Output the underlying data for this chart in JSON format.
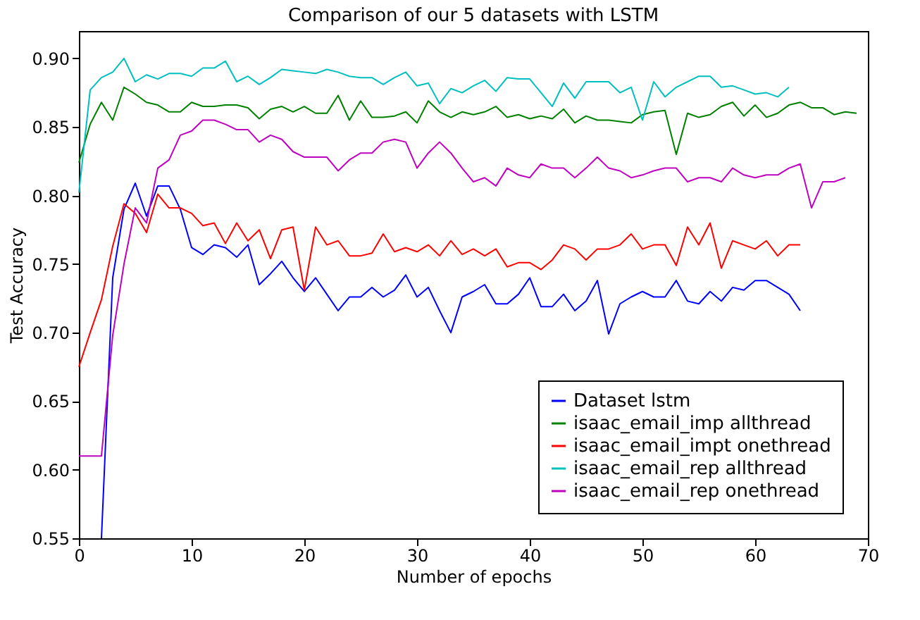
{
  "chart_data": {
    "type": "line",
    "title": "Comparison of our 5 datasets with LSTM",
    "xlabel": "Number of epochs",
    "ylabel": "Test Accuracy",
    "x": [
      0,
      1,
      2,
      3,
      4,
      5,
      6,
      7,
      8,
      9,
      10,
      11,
      12,
      13,
      14,
      15,
      16,
      17,
      18,
      19,
      20,
      21,
      22,
      23,
      24,
      25,
      26,
      27,
      28,
      29,
      30,
      31,
      32,
      33,
      34,
      35,
      36,
      37,
      38,
      39,
      40,
      41,
      42,
      43,
      44,
      45,
      46,
      47,
      48,
      49,
      50,
      51,
      52,
      53,
      54,
      55,
      56,
      57,
      58,
      59,
      60,
      61,
      62,
      63,
      64,
      65,
      66,
      67,
      68,
      69
    ],
    "series": [
      {
        "name": "Dataset lstm",
        "color": "#0000ff",
        "values": [
          null,
          null,
          0.55,
          0.74,
          0.79,
          0.809,
          0.785,
          0.807,
          0.807,
          0.79,
          0.762,
          0.757,
          0.764,
          0.762,
          0.755,
          0.764,
          0.735,
          0.743,
          0.752,
          0.74,
          0.73,
          0.74,
          0.728,
          0.716,
          0.726,
          0.726,
          0.733,
          0.726,
          0.731,
          0.742,
          0.726,
          0.733,
          0.716,
          0.7,
          0.726,
          0.73,
          0.735,
          0.721,
          0.721,
          0.728,
          0.74,
          0.719,
          0.719,
          0.728,
          0.716,
          0.723,
          0.738,
          0.699,
          0.721,
          0.726,
          0.73,
          0.726,
          0.726,
          0.738,
          0.723,
          0.721,
          0.73,
          0.723,
          0.733,
          0.731,
          0.738,
          0.738,
          0.733,
          0.728,
          0.716,
          null,
          null,
          null,
          null,
          null
        ]
      },
      {
        "name": "isaac_email_imp allthread",
        "color": "#008000",
        "values": [
          0.824,
          0.852,
          0.868,
          0.855,
          0.879,
          0.874,
          0.868,
          0.866,
          0.861,
          0.861,
          0.868,
          0.865,
          0.865,
          0.866,
          0.866,
          0.864,
          0.856,
          0.863,
          0.865,
          0.861,
          0.865,
          0.86,
          0.86,
          0.873,
          0.855,
          0.869,
          0.857,
          0.857,
          0.858,
          0.861,
          0.853,
          0.869,
          0.861,
          0.857,
          0.861,
          0.859,
          0.861,
          0.865,
          0.857,
          0.859,
          0.856,
          0.858,
          0.856,
          0.863,
          0.853,
          0.858,
          0.855,
          0.855,
          0.854,
          0.853,
          0.859,
          0.861,
          0.862,
          0.83,
          0.86,
          0.857,
          0.859,
          0.865,
          0.868,
          0.858,
          0.866,
          0.857,
          0.86,
          0.866,
          0.868,
          0.864,
          0.864,
          0.859,
          0.861,
          0.86
        ]
      },
      {
        "name": "isaac_email_impt onethread",
        "color": "#ff0000",
        "values": [
          0.675,
          0.7,
          0.724,
          0.763,
          0.794,
          0.787,
          0.773,
          0.801,
          0.791,
          0.791,
          0.787,
          0.778,
          0.78,
          0.765,
          0.78,
          0.767,
          0.775,
          0.754,
          0.775,
          0.777,
          0.731,
          0.777,
          0.764,
          0.767,
          0.756,
          0.756,
          0.758,
          0.772,
          0.759,
          0.762,
          0.759,
          0.764,
          0.756,
          0.767,
          0.757,
          0.761,
          0.756,
          0.761,
          0.748,
          0.751,
          0.751,
          0.746,
          0.753,
          0.764,
          0.761,
          0.753,
          0.761,
          0.761,
          0.764,
          0.772,
          0.761,
          0.764,
          0.764,
          0.749,
          0.777,
          0.764,
          0.78,
          0.747,
          0.767,
          0.764,
          0.761,
          0.767,
          0.756,
          0.764,
          0.764,
          null,
          null,
          null,
          null,
          null
        ]
      },
      {
        "name": "isaac_email_rep allthread",
        "color": "#00bfbf",
        "values": [
          0.802,
          0.877,
          0.886,
          0.89,
          0.9,
          0.883,
          0.888,
          0.885,
          0.889,
          0.889,
          0.887,
          0.893,
          0.893,
          0.898,
          0.883,
          0.887,
          0.881,
          0.886,
          0.892,
          0.891,
          0.89,
          0.889,
          0.892,
          0.89,
          0.887,
          0.886,
          0.886,
          0.881,
          0.886,
          0.89,
          0.88,
          0.882,
          0.867,
          0.878,
          0.875,
          0.88,
          0.884,
          0.876,
          0.886,
          0.885,
          0.885,
          0.875,
          0.865,
          0.882,
          0.871,
          0.883,
          0.883,
          0.883,
          0.875,
          0.879,
          0.855,
          0.883,
          0.872,
          0.879,
          0.883,
          0.887,
          0.887,
          0.879,
          0.88,
          0.877,
          0.874,
          0.875,
          0.872,
          0.879,
          null,
          null,
          null,
          null,
          null,
          null
        ]
      },
      {
        "name": "isaac_email_rep onethread",
        "color": "#bf00bf",
        "values": [
          0.61,
          0.61,
          0.61,
          0.698,
          0.75,
          0.791,
          0.78,
          0.82,
          0.826,
          0.844,
          0.847,
          0.855,
          0.855,
          0.852,
          0.848,
          0.848,
          0.839,
          0.844,
          0.841,
          0.832,
          0.828,
          0.828,
          0.828,
          0.818,
          0.826,
          0.831,
          0.831,
          0.839,
          0.841,
          0.839,
          0.82,
          0.831,
          0.839,
          0.831,
          0.82,
          0.81,
          0.813,
          0.807,
          0.82,
          0.815,
          0.813,
          0.823,
          0.82,
          0.82,
          0.813,
          0.82,
          0.828,
          0.82,
          0.818,
          0.813,
          0.815,
          0.818,
          0.82,
          0.82,
          0.81,
          0.813,
          0.813,
          0.81,
          0.82,
          0.815,
          0.813,
          0.815,
          0.815,
          0.82,
          0.823,
          0.791,
          0.81,
          0.81,
          0.813,
          null
        ]
      }
    ],
    "xlim": [
      0,
      70
    ],
    "xticks": [
      0,
      10,
      20,
      30,
      40,
      50,
      60,
      70
    ],
    "ylim": [
      0.55,
      0.92
    ],
    "yticks": [
      0.55,
      {
        "value": 0.6,
        "label": "0.60"
      },
      0.65,
      {
        "value": 0.7,
        "label": "0.70"
      },
      0.75,
      {
        "value": 0.8,
        "label": "0.80"
      },
      0.85,
      {
        "value": 0.9,
        "label": "0.90"
      }
    ],
    "grid": false,
    "legend": "bottom right",
    "line_style": "solid"
  }
}
